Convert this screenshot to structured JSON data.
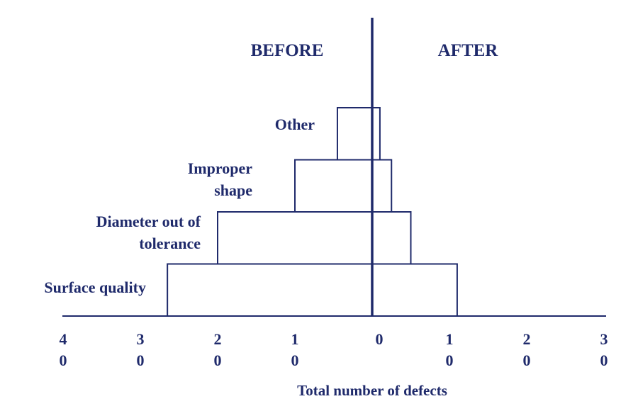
{
  "chart_data": {
    "type": "bar",
    "subtype": "back-to-back horizontal bar (before/after comparison)",
    "side_labels": {
      "left": "BEFORE",
      "right": "AFTER"
    },
    "categories": [
      [
        "Other"
      ],
      [
        "Improper",
        "shape"
      ],
      [
        "Diameter out of",
        "tolerance"
      ],
      [
        "Surface quality"
      ]
    ],
    "series": [
      {
        "name": "BEFORE",
        "values": [
          4.5,
          10,
          20,
          26.5
        ]
      },
      {
        "name": "AFTER",
        "values": [
          1,
          2.5,
          5,
          11
        ]
      }
    ],
    "xlabel": "Total number of defects",
    "ticks": [
      {
        "value": -40,
        "lines": [
          "4",
          "0"
        ]
      },
      {
        "value": -30,
        "lines": [
          "3",
          "0"
        ]
      },
      {
        "value": -20,
        "lines": [
          "2",
          "0"
        ]
      },
      {
        "value": -10,
        "lines": [
          "1",
          "0"
        ]
      },
      {
        "value": 0,
        "lines": [
          "0",
          ""
        ]
      },
      {
        "value": 10,
        "lines": [
          "1",
          "0"
        ]
      },
      {
        "value": 20,
        "lines": [
          "2",
          "0"
        ]
      },
      {
        "value": 30,
        "lines": [
          "3",
          "0"
        ]
      }
    ],
    "xlim": [
      -40,
      30
    ],
    "grid": false,
    "colors": {
      "ink": "#1f2a6b",
      "background": "#ffffff"
    }
  }
}
